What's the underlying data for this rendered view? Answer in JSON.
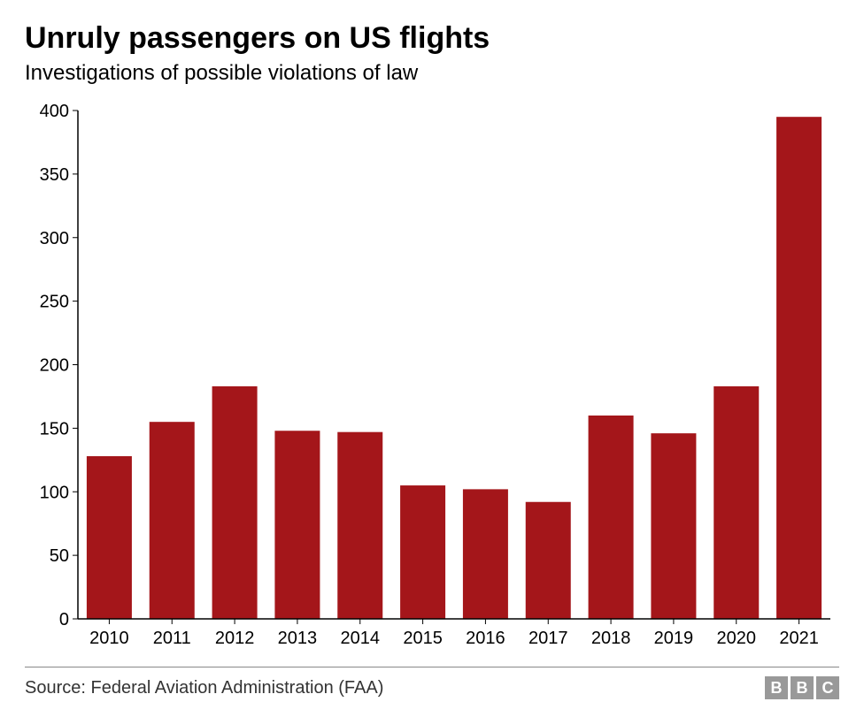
{
  "title": "Unruly passengers on US flights",
  "subtitle": "Investigations of possible violations of law",
  "source": "Source: Federal Aviation Administration (FAA)",
  "logo_letters": [
    "B",
    "B",
    "C"
  ],
  "chart": {
    "type": "bar",
    "categories": [
      "2010",
      "2011",
      "2012",
      "2013",
      "2014",
      "2015",
      "2016",
      "2017",
      "2018",
      "2019",
      "2020",
      "2021"
    ],
    "values": [
      128,
      155,
      183,
      148,
      147,
      105,
      102,
      92,
      160,
      146,
      183,
      395
    ],
    "bar_color": "#a4161a",
    "axis_color": "#000000",
    "background_color": "#ffffff",
    "ylim": [
      0,
      400
    ],
    "ytick_step": 50,
    "tick_fontsize": 20,
    "title_fontsize": 34,
    "subtitle_fontsize": 24,
    "source_fontsize": 20,
    "bar_width_ratio": 0.72
  }
}
